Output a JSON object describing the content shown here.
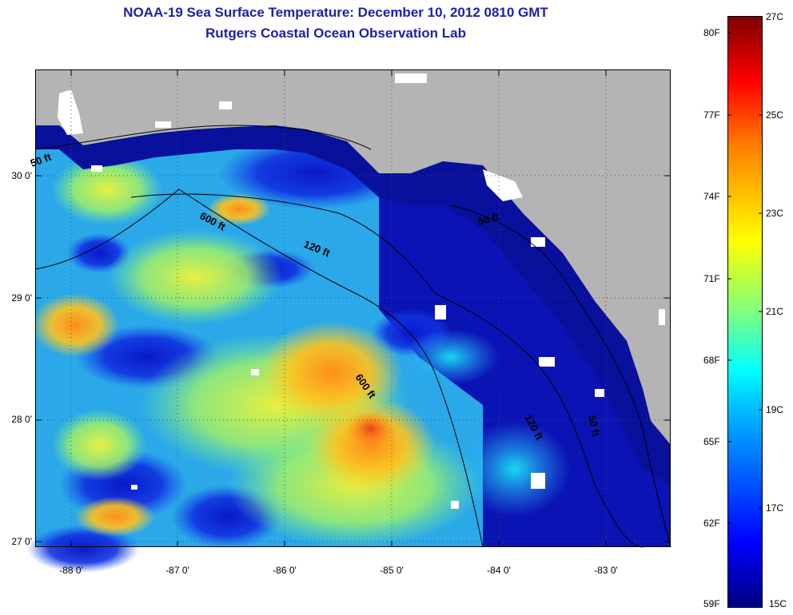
{
  "title": {
    "line1": "NOAA-19 Sea Surface Temperature:  December 10, 2012 0810 GMT",
    "line2": "Rutgers Coastal Ocean Observation Lab"
  },
  "map": {
    "lat_labels": [
      "30 0'",
      "29 0'",
      "28 0'",
      "27 0'"
    ],
    "lon_labels": [
      "-88 0'",
      "-87 0'",
      "-86 0'",
      "-85 0'",
      "-84 0'",
      "-83 0'"
    ],
    "contours": [
      {
        "label": "50 ft"
      },
      {
        "label": "600 ft"
      },
      {
        "label": "120 ft"
      },
      {
        "label": "50 ft"
      },
      {
        "label": "600 ft"
      },
      {
        "label": "120 ft"
      },
      {
        "label": "50 ft"
      }
    ],
    "colors": {
      "land": "#b4b4b4",
      "cloud": "#ffffff",
      "contour": "#000000"
    }
  },
  "colorbar": {
    "fahrenheit": [
      "80F",
      "77F",
      "74F",
      "71F",
      "68F",
      "65F",
      "62F",
      "59F"
    ],
    "celsius": [
      "27C",
      "25C",
      "23C",
      "21C",
      "19C",
      "17C",
      "15C"
    ],
    "min_c": 15,
    "max_c": 27
  }
}
